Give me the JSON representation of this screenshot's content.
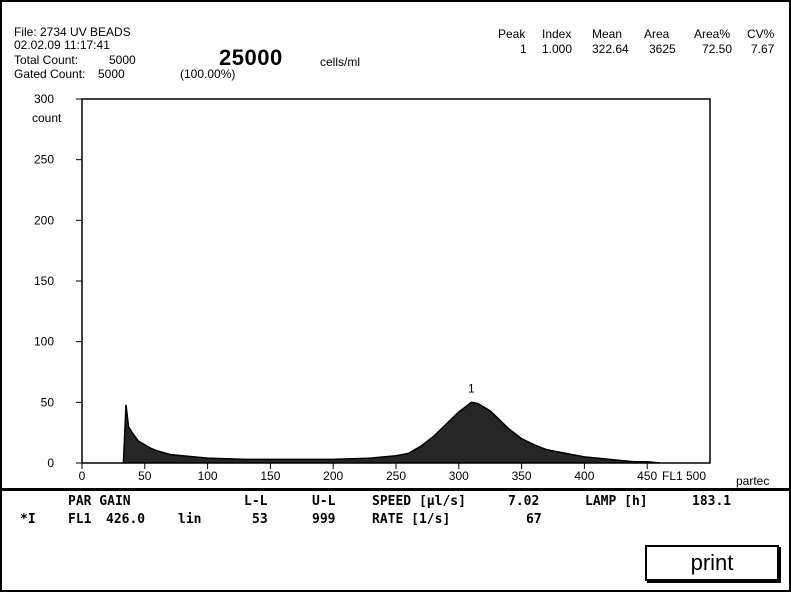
{
  "header": {
    "file": "File: 2734 UV BEADS",
    "datetime": "02.02.09 11:17:41",
    "total_count_label": "Total Count:",
    "total_count": "5000",
    "gated_count_label": "Gated Count:",
    "gated_count": "5000",
    "gated_percent": "(100.00%)",
    "concentration": "25000",
    "concentration_unit": "cells/ml"
  },
  "stats": {
    "headers": [
      "Peak",
      "Index",
      "Mean",
      "Area",
      "Area%",
      "CV%"
    ],
    "row": [
      "1",
      "1.000",
      "322.64",
      "3625",
      "72.50",
      "7.67"
    ]
  },
  "brand": "partec",
  "chart_data": {
    "type": "line",
    "title": "",
    "xlabel": "FL1",
    "ylabel": "count",
    "xlim": [
      0,
      500
    ],
    "ylim": [
      0,
      300
    ],
    "x_ticks": [
      0,
      50,
      100,
      150,
      200,
      250,
      300,
      350,
      400,
      450
    ],
    "x_tick_labels": [
      "0",
      "50",
      "100",
      "150",
      "200",
      "250",
      "300",
      "350",
      "400",
      "450"
    ],
    "x_end_label": "500",
    "y_ticks": [
      0,
      50,
      100,
      150,
      200,
      250,
      300
    ],
    "grid": false,
    "series": [
      {
        "x": [
          33,
          35,
          37,
          40,
          45,
          50,
          55,
          60,
          70,
          80,
          100,
          130,
          160,
          200,
          230,
          250,
          260,
          270,
          280,
          290,
          300,
          305,
          310,
          315,
          320,
          325,
          330,
          340,
          350,
          360,
          370,
          380,
          390,
          400,
          410,
          420,
          430,
          440,
          450,
          460
        ],
        "y": [
          0,
          48,
          30,
          25,
          18,
          15,
          12,
          10,
          7,
          6,
          4,
          3,
          3,
          3,
          4,
          6,
          8,
          14,
          22,
          32,
          42,
          46,
          50,
          49,
          46,
          43,
          38,
          28,
          20,
          15,
          11,
          9,
          7,
          5,
          4,
          3,
          2,
          1,
          1,
          0
        ]
      }
    ],
    "annotations": [
      {
        "text": "1",
        "x": 310,
        "y": 55
      }
    ]
  },
  "status": {
    "row1": {
      "col1": "PAR GAIN",
      "ll": "L-L",
      "ul": "U-L",
      "speed_label": "SPEED [µl/s]",
      "speed_value": "7.02",
      "lamp_label": "LAMP [h]",
      "lamp_value": "183.1"
    },
    "row2": {
      "marker": "*I",
      "channel": "FL1",
      "gain": "426.0",
      "mode": "lin",
      "ll": "53",
      "ul": "999",
      "rate_label": "RATE [1/s]",
      "rate_value": "67"
    }
  },
  "print_label": "print"
}
